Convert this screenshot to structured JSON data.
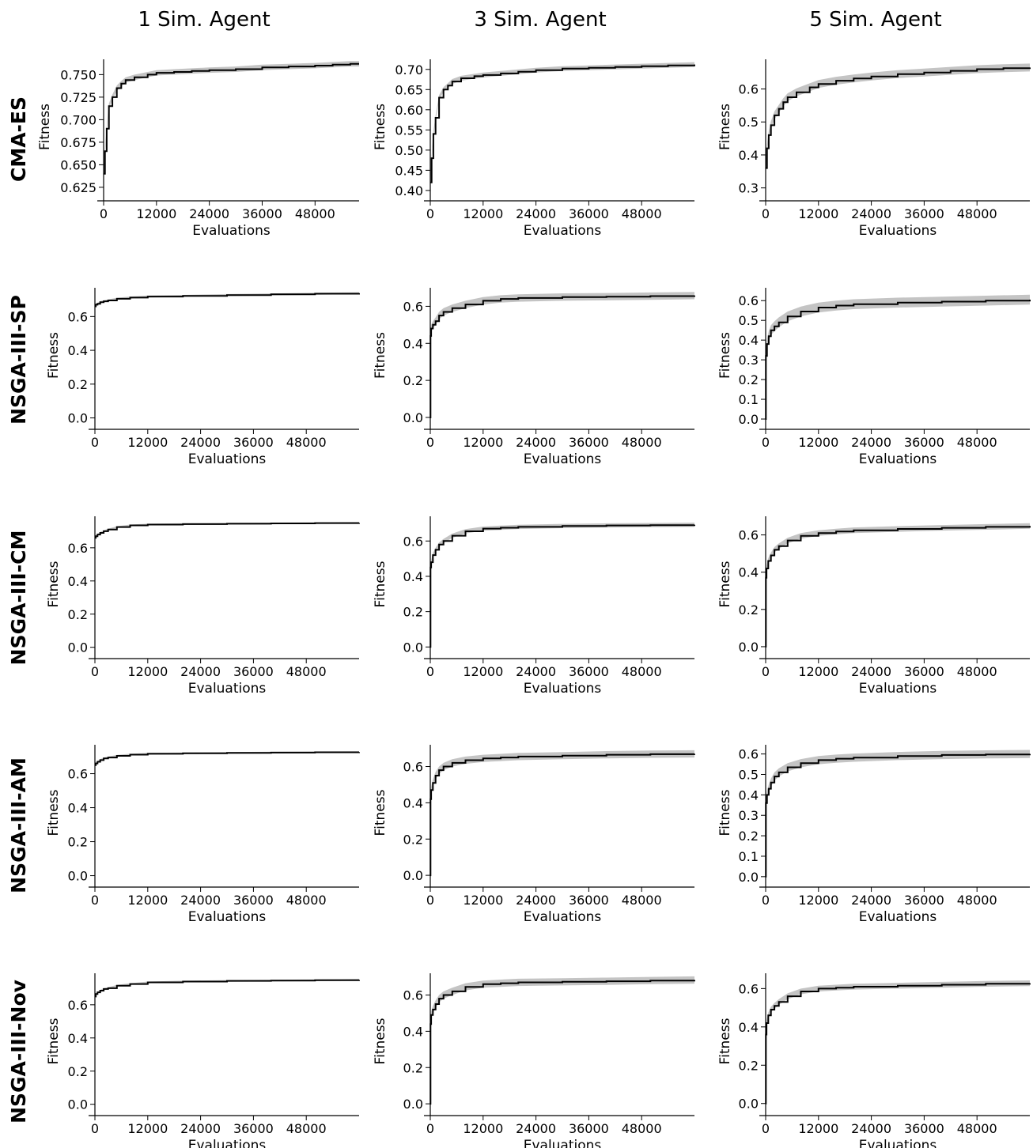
{
  "figure": {
    "col_titles": [
      "1 Sim. Agent",
      "3 Sim. Agent",
      "5 Sim. Agent"
    ],
    "row_titles": [
      "CMA-ES",
      "NSGA-III-SP",
      "NSGA-III-CM",
      "NSGA-III-AM",
      "NSGA-III-Nov"
    ],
    "line_color": "#000000",
    "band_color": "#c4c4c4"
  },
  "chart_data": [
    {
      "type": "line",
      "row": "CMA-ES",
      "col": "1 Sim. Agent",
      "xlabel": "Evaluations",
      "ylabel": "Fitness",
      "xlim": [
        0,
        58000
      ],
      "ylim": [
        0.617,
        0.767
      ],
      "xticks": [
        0,
        12000,
        24000,
        36000,
        48000
      ],
      "yticks": [
        0.625,
        0.65,
        0.675,
        0.7,
        0.725,
        0.75
      ],
      "ytick_labels": [
        "0.625",
        "0.650",
        "0.675",
        "0.700",
        "0.725",
        "0.750"
      ],
      "band": 0.003,
      "x": [
        0,
        300,
        700,
        1200,
        2000,
        3000,
        4000,
        5000,
        7000,
        10000,
        12000,
        16000,
        20000,
        24000,
        30000,
        36000,
        42000,
        48000,
        52000,
        56000,
        58000
      ],
      "y": [
        0.64,
        0.665,
        0.69,
        0.715,
        0.725,
        0.735,
        0.74,
        0.744,
        0.747,
        0.75,
        0.752,
        0.753,
        0.754,
        0.755,
        0.756,
        0.758,
        0.759,
        0.76,
        0.761,
        0.762,
        0.762
      ]
    },
    {
      "type": "line",
      "row": "CMA-ES",
      "col": "3 Sim. Agent",
      "xlabel": "Evaluations",
      "ylabel": "Fitness",
      "xlim": [
        0,
        60000
      ],
      "ylim": [
        0.39,
        0.725
      ],
      "xticks": [
        0,
        12000,
        24000,
        36000,
        48000
      ],
      "yticks": [
        0.4,
        0.45,
        0.5,
        0.55,
        0.6,
        0.65,
        0.7
      ],
      "ytick_labels": [
        "0.40",
        "0.45",
        "0.50",
        "0.55",
        "0.60",
        "0.65",
        "0.70"
      ],
      "band": 0.006,
      "x": [
        0,
        300,
        700,
        1200,
        2000,
        3000,
        4000,
        5000,
        7000,
        10000,
        12000,
        16000,
        20000,
        24000,
        30000,
        36000,
        42000,
        48000,
        54000,
        60000
      ],
      "y": [
        0.42,
        0.48,
        0.54,
        0.58,
        0.63,
        0.65,
        0.66,
        0.67,
        0.678,
        0.683,
        0.686,
        0.69,
        0.694,
        0.698,
        0.702,
        0.704,
        0.706,
        0.708,
        0.71,
        0.712
      ]
    },
    {
      "type": "line",
      "row": "CMA-ES",
      "col": "5 Sim. Agent",
      "xlabel": "Evaluations",
      "ylabel": "Fitness",
      "xlim": [
        0,
        60000
      ],
      "ylim": [
        0.28,
        0.69
      ],
      "xticks": [
        0,
        12000,
        24000,
        36000,
        48000
      ],
      "yticks": [
        0.3,
        0.4,
        0.5,
        0.6
      ],
      "ytick_labels": [
        "0.3",
        "0.4",
        "0.5",
        "0.6"
      ],
      "band": 0.012,
      "x": [
        0,
        300,
        700,
        1200,
        2000,
        3000,
        4000,
        5000,
        7000,
        10000,
        12000,
        16000,
        20000,
        24000,
        30000,
        36000,
        42000,
        48000,
        54000,
        60000
      ],
      "y": [
        0.36,
        0.42,
        0.46,
        0.49,
        0.52,
        0.54,
        0.56,
        0.575,
        0.59,
        0.605,
        0.615,
        0.625,
        0.632,
        0.638,
        0.645,
        0.65,
        0.655,
        0.66,
        0.663,
        0.665
      ]
    },
    {
      "type": "line",
      "row": "NSGA-III-SP",
      "col": "1 Sim. Agent",
      "xlabel": "Evaluations",
      "ylabel": "Fitness",
      "xlim": [
        0,
        60000
      ],
      "ylim": [
        -0.03,
        0.77
      ],
      "xticks": [
        0,
        12000,
        24000,
        36000,
        48000
      ],
      "yticks": [
        0,
        0.2,
        0.4,
        0.6
      ],
      "ytick_labels": [
        "0.0",
        "0.2",
        "0.4",
        "0.6"
      ],
      "band": 0.006,
      "x": [
        0,
        200,
        600,
        1200,
        2000,
        3000,
        5000,
        8000,
        12000,
        20000,
        30000,
        40000,
        50000,
        60000
      ],
      "y": [
        0.66,
        0.67,
        0.675,
        0.685,
        0.69,
        0.695,
        0.705,
        0.712,
        0.718,
        0.722,
        0.727,
        0.731,
        0.735,
        0.738
      ]
    },
    {
      "type": "line",
      "row": "NSGA-III-SP",
      "col": "3 Sim. Agent",
      "xlabel": "Evaluations",
      "ylabel": "Fitness",
      "xlim": [
        0,
        60000
      ],
      "ylim": [
        -0.03,
        0.7
      ],
      "xticks": [
        0,
        12000,
        24000,
        36000,
        48000
      ],
      "yticks": [
        0,
        0.2,
        0.4,
        0.6
      ],
      "ytick_labels": [
        "0.0",
        "0.2",
        "0.4",
        "0.6"
      ],
      "band": 0.02,
      "x": [
        0,
        50,
        200,
        600,
        1200,
        2000,
        3000,
        5000,
        8000,
        12000,
        16000,
        20000,
        30000,
        40000,
        50000,
        60000
      ],
      "y": [
        0,
        0.44,
        0.48,
        0.5,
        0.52,
        0.55,
        0.57,
        0.59,
        0.61,
        0.63,
        0.64,
        0.645,
        0.65,
        0.652,
        0.655,
        0.658
      ]
    },
    {
      "type": "line",
      "row": "NSGA-III-SP",
      "col": "5 Sim. Agent",
      "xlabel": "Evaluations",
      "ylabel": "Fitness",
      "xlim": [
        0,
        60000
      ],
      "ylim": [
        -0.02,
        0.665
      ],
      "xticks": [
        0,
        12000,
        24000,
        36000,
        48000
      ],
      "yticks": [
        0,
        0.1,
        0.2,
        0.3,
        0.4,
        0.5,
        0.6
      ],
      "ytick_labels": [
        "0.0",
        "0.1",
        "0.2",
        "0.3",
        "0.4",
        "0.5",
        "0.6"
      ],
      "band": 0.025,
      "x": [
        0,
        50,
        300,
        700,
        1200,
        2000,
        3000,
        5000,
        8000,
        12000,
        16000,
        20000,
        30000,
        40000,
        50000,
        60000
      ],
      "y": [
        0,
        0.32,
        0.38,
        0.42,
        0.45,
        0.47,
        0.49,
        0.52,
        0.545,
        0.565,
        0.575,
        0.582,
        0.59,
        0.595,
        0.6,
        0.605
      ]
    },
    {
      "type": "line",
      "row": "NSGA-III-CM",
      "col": "1 Sim. Agent",
      "xlabel": "Evaluations",
      "ylabel": "Fitness",
      "xlim": [
        0,
        60000
      ],
      "ylim": [
        -0.03,
        0.79
      ],
      "xticks": [
        0,
        12000,
        24000,
        36000,
        48000
      ],
      "yticks": [
        0,
        0.2,
        0.4,
        0.6
      ],
      "ytick_labels": [
        "0.0",
        "0.2",
        "0.4",
        "0.6"
      ],
      "band": 0.005,
      "x": [
        0,
        200,
        600,
        1200,
        2000,
        3000,
        5000,
        8000,
        12000,
        20000,
        30000,
        40000,
        50000,
        60000
      ],
      "y": [
        0.66,
        0.67,
        0.68,
        0.69,
        0.7,
        0.71,
        0.725,
        0.735,
        0.74,
        0.743,
        0.745,
        0.747,
        0.749,
        0.75
      ]
    },
    {
      "type": "line",
      "row": "NSGA-III-CM",
      "col": "3 Sim. Agent",
      "xlabel": "Evaluations",
      "ylabel": "Fitness",
      "xlim": [
        0,
        60000
      ],
      "ylim": [
        -0.03,
        0.74
      ],
      "xticks": [
        0,
        12000,
        24000,
        36000,
        48000
      ],
      "yticks": [
        0,
        0.2,
        0.4,
        0.6
      ],
      "ytick_labels": [
        "0.0",
        "0.2",
        "0.4",
        "0.6"
      ],
      "band": 0.012,
      "x": [
        0,
        50,
        200,
        600,
        1200,
        2000,
        3000,
        5000,
        8000,
        12000,
        16000,
        20000,
        30000,
        40000,
        50000,
        60000
      ],
      "y": [
        0,
        0.45,
        0.48,
        0.52,
        0.55,
        0.58,
        0.6,
        0.63,
        0.655,
        0.67,
        0.675,
        0.68,
        0.685,
        0.688,
        0.69,
        0.692
      ]
    },
    {
      "type": "line",
      "row": "NSGA-III-CM",
      "col": "5 Sim. Agent",
      "xlabel": "Evaluations",
      "ylabel": "Fitness",
      "xlim": [
        0,
        60000
      ],
      "ylim": [
        -0.03,
        0.7
      ],
      "xticks": [
        0,
        12000,
        24000,
        36000,
        48000
      ],
      "yticks": [
        0,
        0.2,
        0.4,
        0.6
      ],
      "ytick_labels": [
        "0.0",
        "0.2",
        "0.4",
        "0.6"
      ],
      "band": 0.015,
      "x": [
        0,
        50,
        200,
        600,
        1200,
        2000,
        3000,
        5000,
        8000,
        12000,
        16000,
        20000,
        30000,
        40000,
        50000,
        60000
      ],
      "y": [
        0,
        0.37,
        0.42,
        0.46,
        0.49,
        0.52,
        0.54,
        0.57,
        0.595,
        0.61,
        0.618,
        0.625,
        0.632,
        0.638,
        0.643,
        0.648
      ]
    },
    {
      "type": "line",
      "row": "NSGA-III-AM",
      "col": "1 Sim. Agent",
      "xlabel": "Evaluations",
      "ylabel": "Fitness",
      "xlim": [
        0,
        60000
      ],
      "ylim": [
        -0.03,
        0.77
      ],
      "xticks": [
        0,
        12000,
        24000,
        36000,
        48000
      ],
      "yticks": [
        0,
        0.2,
        0.4,
        0.6
      ],
      "ytick_labels": [
        "0.0",
        "0.2",
        "0.4",
        "0.6"
      ],
      "band": 0.005,
      "x": [
        0,
        200,
        600,
        1200,
        2000,
        3000,
        5000,
        8000,
        12000,
        20000,
        30000,
        40000,
        50000,
        60000
      ],
      "y": [
        0.65,
        0.66,
        0.67,
        0.68,
        0.69,
        0.695,
        0.705,
        0.712,
        0.717,
        0.72,
        0.722,
        0.724,
        0.726,
        0.727
      ]
    },
    {
      "type": "line",
      "row": "NSGA-III-AM",
      "col": "3 Sim. Agent",
      "xlabel": "Evaluations",
      "ylabel": "Fitness",
      "xlim": [
        0,
        60000
      ],
      "ylim": [
        -0.03,
        0.72
      ],
      "xticks": [
        0,
        12000,
        24000,
        36000,
        48000
      ],
      "yticks": [
        0,
        0.2,
        0.4,
        0.6
      ],
      "ytick_labels": [
        "0.0",
        "0.2",
        "0.4",
        "0.6"
      ],
      "band": 0.02,
      "x": [
        0,
        50,
        200,
        600,
        1200,
        2000,
        3000,
        5000,
        8000,
        12000,
        16000,
        20000,
        30000,
        40000,
        50000,
        60000
      ],
      "y": [
        0,
        0.42,
        0.47,
        0.51,
        0.55,
        0.58,
        0.6,
        0.62,
        0.635,
        0.645,
        0.65,
        0.655,
        0.66,
        0.665,
        0.668,
        0.67
      ]
    },
    {
      "type": "line",
      "row": "NSGA-III-AM",
      "col": "5 Sim. Agent",
      "xlabel": "Evaluations",
      "ylabel": "Fitness",
      "xlim": [
        0,
        60000
      ],
      "ylim": [
        -0.02,
        0.645
      ],
      "xticks": [
        0,
        12000,
        24000,
        36000,
        48000
      ],
      "yticks": [
        0,
        0.1,
        0.2,
        0.3,
        0.4,
        0.5,
        0.6
      ],
      "ytick_labels": [
        "0.0",
        "0.1",
        "0.2",
        "0.3",
        "0.4",
        "0.5",
        "0.6"
      ],
      "band": 0.02,
      "x": [
        0,
        50,
        300,
        700,
        1200,
        2000,
        3000,
        5000,
        8000,
        12000,
        16000,
        20000,
        30000,
        40000,
        50000,
        60000
      ],
      "y": [
        0,
        0.36,
        0.4,
        0.43,
        0.46,
        0.49,
        0.51,
        0.535,
        0.555,
        0.57,
        0.577,
        0.582,
        0.59,
        0.595,
        0.598,
        0.6
      ]
    },
    {
      "type": "line",
      "row": "NSGA-III-Nov",
      "col": "1 Sim. Agent",
      "xlabel": "Evaluations",
      "ylabel": "Fitness",
      "xlim": [
        0,
        60000
      ],
      "ylim": [
        -0.03,
        0.79
      ],
      "xticks": [
        0,
        12000,
        24000,
        36000,
        48000
      ],
      "yticks": [
        0,
        0.2,
        0.4,
        0.6
      ],
      "ytick_labels": [
        "0.0",
        "0.2",
        "0.4",
        "0.6"
      ],
      "band": 0.005,
      "x": [
        0,
        200,
        600,
        1200,
        2000,
        3000,
        5000,
        8000,
        12000,
        20000,
        30000,
        40000,
        50000,
        60000
      ],
      "y": [
        0.65,
        0.665,
        0.675,
        0.685,
        0.695,
        0.7,
        0.715,
        0.725,
        0.735,
        0.74,
        0.744,
        0.746,
        0.748,
        0.75
      ]
    },
    {
      "type": "line",
      "row": "NSGA-III-Nov",
      "col": "3 Sim. Agent",
      "xlabel": "Evaluations",
      "ylabel": "Fitness",
      "xlim": [
        0,
        60000
      ],
      "ylim": [
        -0.03,
        0.72
      ],
      "xticks": [
        0,
        12000,
        24000,
        36000,
        48000
      ],
      "yticks": [
        0,
        0.2,
        0.4,
        0.6
      ],
      "ytick_labels": [
        "0.0",
        "0.2",
        "0.4",
        "0.6"
      ],
      "band": 0.02,
      "x": [
        0,
        50,
        200,
        600,
        1200,
        2000,
        3000,
        5000,
        8000,
        12000,
        16000,
        20000,
        30000,
        40000,
        50000,
        60000
      ],
      "y": [
        0,
        0.44,
        0.49,
        0.52,
        0.55,
        0.58,
        0.6,
        0.62,
        0.645,
        0.66,
        0.665,
        0.67,
        0.673,
        0.676,
        0.68,
        0.683
      ]
    },
    {
      "type": "line",
      "row": "NSGA-III-Nov",
      "col": "5 Sim. Agent",
      "xlabel": "Evaluations",
      "ylabel": "Fitness",
      "xlim": [
        0,
        60000
      ],
      "ylim": [
        -0.03,
        0.68
      ],
      "xticks": [
        0,
        12000,
        24000,
        36000,
        48000
      ],
      "yticks": [
        0,
        0.2,
        0.4,
        0.6
      ],
      "ytick_labels": [
        "0.0",
        "0.2",
        "0.4",
        "0.6"
      ],
      "band": 0.015,
      "x": [
        0,
        50,
        200,
        600,
        1200,
        2000,
        3000,
        5000,
        8000,
        12000,
        16000,
        20000,
        30000,
        40000,
        50000,
        60000
      ],
      "y": [
        0,
        0.36,
        0.42,
        0.46,
        0.49,
        0.51,
        0.53,
        0.56,
        0.585,
        0.6,
        0.605,
        0.61,
        0.615,
        0.62,
        0.625,
        0.628
      ]
    }
  ]
}
